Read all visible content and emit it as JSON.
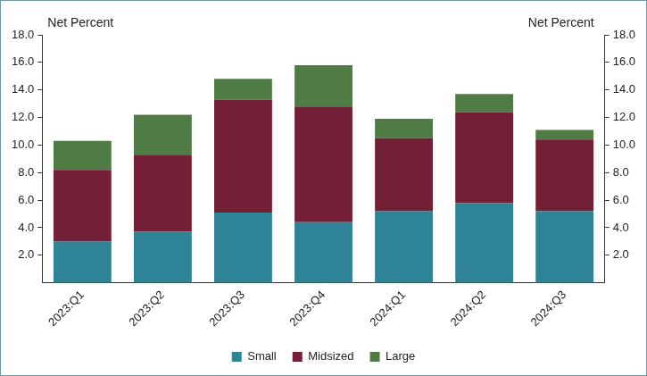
{
  "chart_data": {
    "type": "bar",
    "stacked": true,
    "ylabel": "Net Percent",
    "y2label": "Net Percent",
    "categories": [
      "2023:Q1",
      "2023:Q2",
      "2023:Q3",
      "2023:Q4",
      "2024:Q1",
      "2024:Q2",
      "2024:Q3"
    ],
    "series": [
      {
        "name": "Small",
        "color": "#2f8397",
        "values": [
          3.0,
          3.7,
          5.1,
          4.4,
          5.2,
          5.8,
          5.2
        ]
      },
      {
        "name": "Midsized",
        "color": "#731f35",
        "values": [
          5.2,
          5.6,
          8.2,
          8.4,
          5.3,
          6.6,
          5.2
        ]
      },
      {
        "name": "Large",
        "color": "#4f7b45",
        "values": [
          2.1,
          2.9,
          1.5,
          3.0,
          1.4,
          1.3,
          0.7
        ]
      }
    ],
    "ylim": [
      0,
      18
    ],
    "yticks": [
      {
        "value": 2,
        "label": "2.0"
      },
      {
        "value": 4,
        "label": "4.0"
      },
      {
        "value": 6,
        "label": "6.0"
      },
      {
        "value": 8,
        "label": "8.0"
      },
      {
        "value": 10,
        "label": "10.0"
      },
      {
        "value": 12,
        "label": "12.0"
      },
      {
        "value": 14,
        "label": "14.0"
      },
      {
        "value": 16,
        "label": "16.0"
      },
      {
        "value": 18,
        "label": "18.0"
      }
    ],
    "y2lim": [
      0,
      18
    ],
    "y2ticks": [
      {
        "value": 2,
        "label": "2.0"
      },
      {
        "value": 4,
        "label": "4.0"
      },
      {
        "value": 6,
        "label": "6.0"
      },
      {
        "value": 8,
        "label": "8.0"
      },
      {
        "value": 10,
        "label": "10.0"
      },
      {
        "value": 12,
        "label": "12.0"
      },
      {
        "value": 14,
        "label": "14.0"
      },
      {
        "value": 16,
        "label": "16.0"
      },
      {
        "value": 18,
        "label": "18.0"
      }
    ],
    "grid": false,
    "legend": "bottom"
  }
}
